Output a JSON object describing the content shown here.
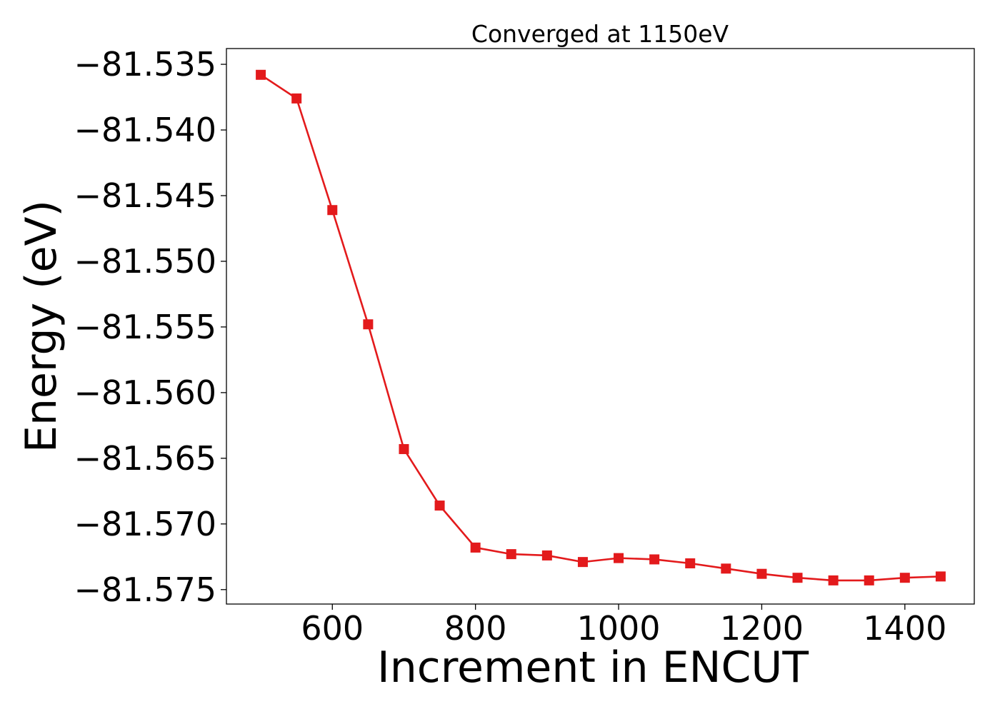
{
  "chart_data": {
    "type": "line",
    "title": "Converged at 1150eV",
    "xlabel": "Increment in ENCUT",
    "ylabel": "Energy (eV)",
    "xlim": [
      452,
      1497
    ],
    "ylim": [
      -81.5761,
      -81.5338
    ],
    "xticks": [
      600,
      800,
      1000,
      1200,
      1400
    ],
    "xtick_labels": [
      "600",
      "800",
      "1000",
      "1200",
      "1400"
    ],
    "yticks": [
      -81.535,
      -81.54,
      -81.545,
      -81.55,
      -81.555,
      -81.56,
      -81.565,
      -81.57,
      -81.575
    ],
    "ytick_labels": [
      "−81.535",
      "−81.540",
      "−81.545",
      "−81.550",
      "−81.555",
      "−81.560",
      "−81.565",
      "−81.570",
      "−81.575"
    ],
    "grid": false,
    "color": "#e31a1c",
    "marker": "square",
    "x": [
      500,
      550,
      600,
      650,
      700,
      750,
      800,
      850,
      900,
      950,
      1000,
      1050,
      1100,
      1150,
      1200,
      1250,
      1300,
      1350,
      1400,
      1450
    ],
    "y": [
      -81.5358,
      -81.5376,
      -81.5461,
      -81.5548,
      -81.5643,
      -81.5686,
      -81.5718,
      -81.5723,
      -81.5724,
      -81.5729,
      -81.5726,
      -81.5727,
      -81.573,
      -81.5734,
      -81.5738,
      -81.5741,
      -81.5743,
      -81.5743,
      -81.5741,
      -81.574
    ]
  }
}
